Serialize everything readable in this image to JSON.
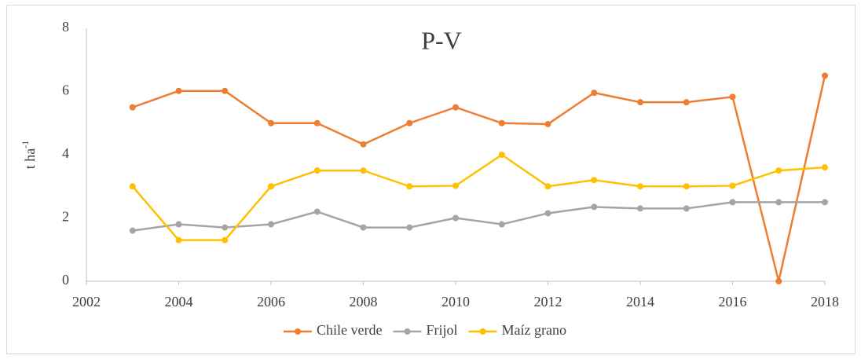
{
  "chart_data": {
    "type": "line",
    "title": "P-V",
    "y_label": {
      "text": "t ha",
      "superscript": "-1"
    },
    "x": [
      2003,
      2004,
      2005,
      2006,
      2007,
      2008,
      2009,
      2010,
      2011,
      2012,
      2013,
      2014,
      2015,
      2016,
      2017,
      2018
    ],
    "xlim": [
      2002,
      2018
    ],
    "xticks": [
      2002,
      2004,
      2006,
      2008,
      2010,
      2012,
      2014,
      2016,
      2018
    ],
    "ylim": [
      0,
      8
    ],
    "yticks": [
      0,
      2,
      4,
      6,
      8
    ],
    "grid": false,
    "legend": "bottom",
    "series": [
      {
        "name": "Chile verde",
        "color": "#ed7d31",
        "values": [
          5.5,
          6.02,
          6.02,
          5.0,
          5.0,
          4.33,
          5.0,
          5.5,
          5.0,
          4.97,
          5.96,
          5.66,
          5.66,
          5.83,
          0,
          6.5
        ]
      },
      {
        "name": "Frijol",
        "color": "#a5a5a5",
        "values": [
          1.6,
          1.8,
          1.7,
          1.8,
          2.2,
          1.7,
          1.7,
          2.0,
          1.8,
          2.15,
          2.35,
          2.3,
          2.3,
          2.5,
          2.5,
          2.5
        ]
      },
      {
        "name": "Maíz grano",
        "color": "#ffc000",
        "values": [
          3.0,
          1.3,
          1.3,
          3.0,
          3.5,
          3.5,
          3.0,
          3.02,
          4.0,
          3.0,
          3.2,
          3.0,
          3.0,
          3.02,
          3.5,
          3.6
        ]
      }
    ]
  }
}
